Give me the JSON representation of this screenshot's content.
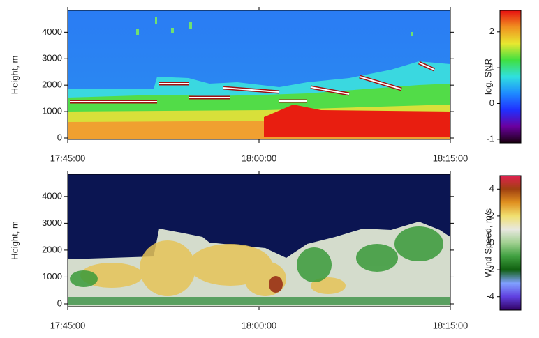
{
  "chart_data": [
    {
      "type": "heatmap",
      "ylabel": "Height, m",
      "xticks": [
        "17:45:00",
        "18:00:00",
        "18:15:00"
      ],
      "ylim": [
        0,
        4800
      ],
      "yticks": [
        0,
        1000,
        2000,
        3000,
        4000
      ],
      "colorbar_label": "log. SNR",
      "clim": [
        -1.1,
        2.6
      ],
      "cticks": [
        -1,
        0,
        1,
        2
      ],
      "colormap": [
        "#1a0010",
        "#6a00a0",
        "#2030ff",
        "#1e8cff",
        "#30e0e0",
        "#40e040",
        "#e8e830",
        "#f09020",
        "#e81010"
      ]
    },
    {
      "type": "heatmap",
      "ylabel": "Height, m",
      "xticks": [
        "17:45:00",
        "18:00:00",
        "18:15:00"
      ],
      "ylim": [
        0,
        4800
      ],
      "yticks": [
        0,
        1000,
        2000,
        3000,
        4000
      ],
      "colorbar_label": "Wind Speed, m/s",
      "clim": [
        -5,
        5
      ],
      "cticks": [
        -4,
        -2,
        0,
        2,
        4
      ],
      "colormap": [
        "#300060",
        "#6040e0",
        "#80a0ff",
        "#106010",
        "#40a040",
        "#a0d090",
        "#e8e8e0",
        "#f0e070",
        "#e09020",
        "#a04010",
        "#e02050"
      ]
    }
  ]
}
